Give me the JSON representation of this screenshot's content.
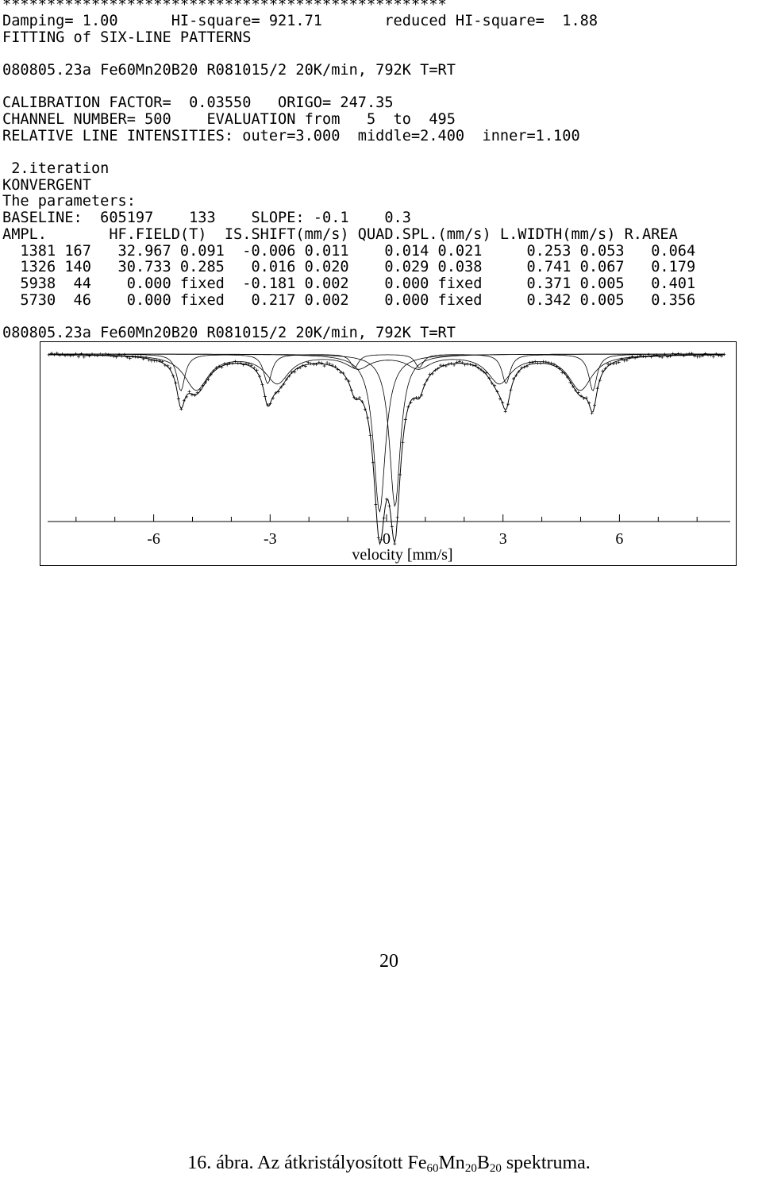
{
  "report": {
    "stars": "**************************************************",
    "line_damping": "Damping= 1.00      HI-square= 921.71       reduced HI-square=  1.88",
    "line_fitting": "FITTING of SIX-LINE PATTERNS",
    "line_sample": "080805.23a Fe60Mn20B20 R081015/2 20K/min, 792K T=RT",
    "line_calib": "CALIBRATION FACTOR=  0.03550   ORIGO= 247.35",
    "line_channel": "CHANNEL NUMBER= 500    EVALUATION from   5  to  495",
    "line_intensities": "RELATIVE LINE INTENSITIES: outer=3.000  middle=2.400  inner=1.100",
    "line_iteration": " 2.iteration",
    "line_konvergent": "KONVERGENT",
    "line_params": "The parameters:",
    "line_baseline": "BASELINE:  605197    133    SLOPE: -0.1    0.3",
    "line_header": "AMPL.       HF.FIELD(T)  IS.SHIFT(mm/s) QUAD.SPL.(mm/s) L.WIDTH(mm/s) R.AREA",
    "rows": [
      "  1381 167   32.967 0.091  -0.006 0.011    0.014 0.021     0.253 0.053   0.064",
      "  1326 140   30.733 0.285   0.016 0.020    0.029 0.038     0.741 0.067   0.179",
      "  5938  44    0.000 fixed  -0.181 0.002    0.000 fixed     0.371 0.005   0.401",
      "  5730  46    0.000 fixed   0.217 0.002    0.000 fixed     0.342 0.005   0.356"
    ],
    "plot_title": "080805.23a Fe60Mn20B20 R081015/2 20K/min, 792K T=RT"
  },
  "chart_data": {
    "type": "line",
    "xlabel": "velocity  [mm/s]",
    "ylabel": "",
    "x_ticks": [
      "-6",
      "-3",
      "0",
      "3",
      "6"
    ],
    "xlim": [
      -8.7,
      8.7
    ],
    "components": [
      {
        "kind": "sextet",
        "field_T": 32.967,
        "is": -0.006,
        "qs": 0.014,
        "width": 0.253,
        "ampl": 1381
      },
      {
        "kind": "sextet",
        "field_T": 30.733,
        "is": 0.016,
        "qs": 0.029,
        "width": 0.741,
        "ampl": 1326
      },
      {
        "kind": "singlet",
        "is": -0.181,
        "width": 0.371,
        "ampl": 5938
      },
      {
        "kind": "singlet",
        "is": 0.217,
        "width": 0.342,
        "ampl": 5730
      }
    ]
  },
  "page": {
    "number": "20",
    "caption_prefix": "16. ábra. Az átkristályosított Fe",
    "sub1": "60",
    "mid1": "Mn",
    "sub2": "20",
    "mid2": "B",
    "sub3": "20",
    "caption_suffix": " spektruma."
  }
}
